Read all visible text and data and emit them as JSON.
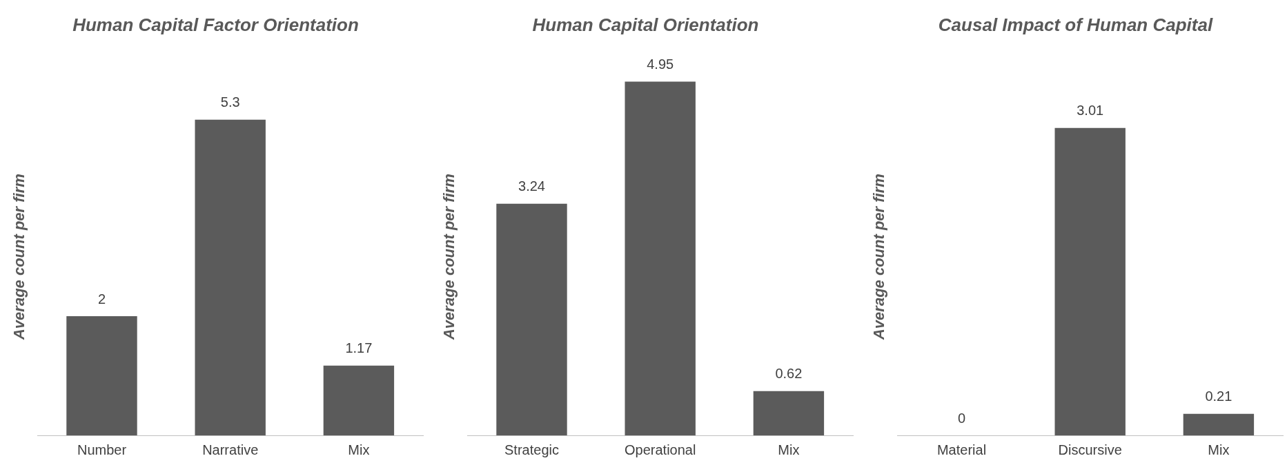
{
  "chart_data": [
    {
      "type": "bar",
      "title": "Human Capital Factor Orientation",
      "ylabel": "Average count per firm",
      "categories": [
        "Number",
        "Narrative",
        "Mix"
      ],
      "values": [
        2,
        5.3,
        1.17
      ],
      "color": "#5b5b5b",
      "data_labels": true,
      "grid": false
    },
    {
      "type": "bar",
      "title": "Human Capital Orientation",
      "ylabel": "Average count per firm",
      "categories": [
        "Strategic",
        "Operational",
        "Mix"
      ],
      "values": [
        3.24,
        4.95,
        0.62
      ],
      "color": "#5b5b5b",
      "data_labels": true,
      "grid": false
    },
    {
      "type": "bar",
      "title": "Causal Impact of Human Capital",
      "ylabel": "Average count per firm",
      "categories": [
        "Material",
        "Discursive",
        "Mix"
      ],
      "values": [
        0,
        3.01,
        0.21
      ],
      "color": "#5b5b5b",
      "data_labels": true,
      "grid": false
    }
  ]
}
